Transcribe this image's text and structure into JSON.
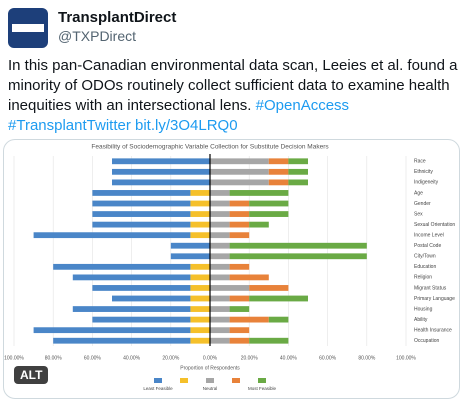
{
  "tweet": {
    "author_name": "TransplantDirect",
    "handle": "@TXPDirect",
    "text": "In this pan-Canadian environmental data scan, Leeies et al. found a minority of ODOs routinely collect sufficient data to examine health inequities with an intersectional lens.",
    "hashtags": [
      "#OpenAccess",
      "#TransplantTwitter"
    ],
    "link": "bit.ly/3O4LRQ0"
  },
  "alt_badge": "ALT",
  "chart_data": {
    "type": "diverging-bar",
    "title": "Feasibility of Sociodemographic Variable Collection for Substitute Decision Makers",
    "x_label": "Proportion of Respondents",
    "categories": [
      "Race",
      "Ethnicity",
      "Indigeneity",
      "Age",
      "Gender",
      "Sex",
      "Sexual Orientation",
      "Income Level",
      "Postal Code",
      "City/Town",
      "Education",
      "Religion",
      "Migrant Status",
      "Primary Language",
      "Housing",
      "Ability",
      "Health Insurance",
      "Occupation"
    ],
    "series": [
      {
        "name": "Least Feasible",
        "color": "#4a86c8",
        "values": [
          50,
          50,
          50,
          50,
          50,
          50,
          50,
          80,
          20,
          20,
          70,
          60,
          50,
          40,
          60,
          50,
          80,
          70
        ]
      },
      {
        "name": null,
        "color": "#f5c02a",
        "values": [
          0,
          0,
          0,
          10,
          10,
          10,
          10,
          10,
          0,
          0,
          10,
          10,
          10,
          10,
          10,
          10,
          10,
          10
        ]
      },
      {
        "name": "Neutral",
        "color": "#a6a6a6",
        "values": [
          30,
          30,
          30,
          10,
          10,
          10,
          10,
          10,
          10,
          10,
          10,
          10,
          20,
          10,
          10,
          10,
          10,
          10
        ]
      },
      {
        "name": null,
        "color": "#e8823a",
        "values": [
          10,
          10,
          10,
          0,
          10,
          10,
          10,
          10,
          0,
          0,
          10,
          20,
          20,
          10,
          0,
          20,
          10,
          10
        ]
      },
      {
        "name": "Most Feasible",
        "color": "#6aaa45",
        "values": [
          10,
          10,
          10,
          30,
          20,
          20,
          10,
          0,
          70,
          70,
          0,
          0,
          0,
          30,
          10,
          10,
          0,
          20
        ]
      }
    ],
    "xlim": [
      -100,
      100
    ],
    "xticks": [
      {
        "value": -100,
        "label": "100.00%"
      },
      {
        "value": -80,
        "label": "80.00%"
      },
      {
        "value": -60,
        "label": "60.00%"
      },
      {
        "value": -40,
        "label": "40.00%"
      },
      {
        "value": -20,
        "label": "20.00%"
      },
      {
        "value": 0,
        "label": "0.00%"
      },
      {
        "value": 20,
        "label": "20.00%"
      },
      {
        "value": 40,
        "label": "40.00%"
      },
      {
        "value": 60,
        "label": "60.00%"
      },
      {
        "value": 80,
        "label": "80.00%"
      },
      {
        "value": 100,
        "label": "100.00%"
      }
    ],
    "grid": true
  }
}
